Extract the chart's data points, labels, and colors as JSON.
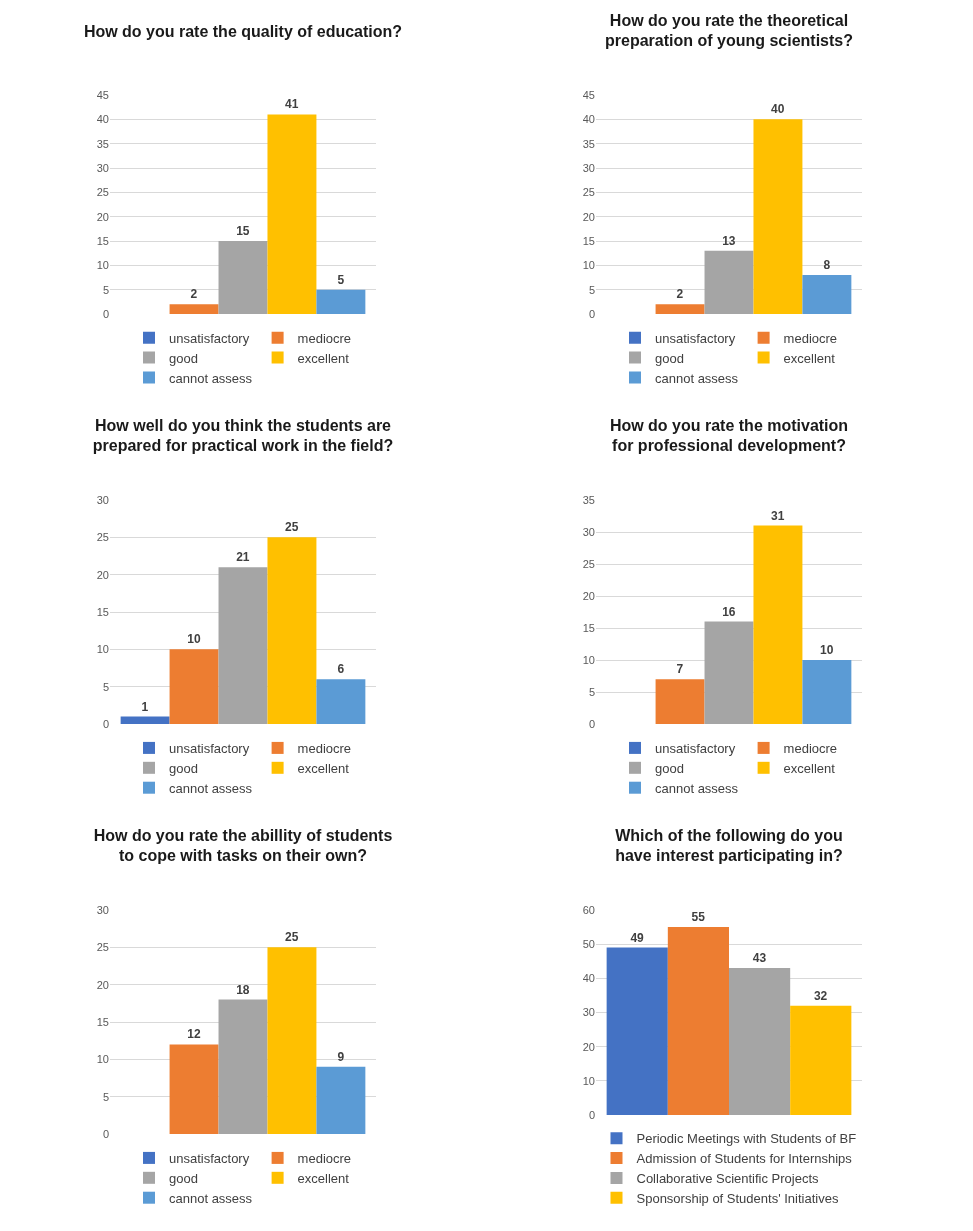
{
  "chart_data": [
    {
      "type": "bar",
      "title": "How do you rate the quality of education?",
      "categories": [
        null
      ],
      "ylim": [
        0,
        45
      ],
      "yticks": [
        0,
        5,
        10,
        15,
        20,
        25,
        30,
        35,
        40,
        45
      ],
      "grid": "y",
      "legend": "bottom",
      "data_labels": true,
      "tick_labels": "y",
      "series": [
        {
          "name": "unsatisfactory",
          "color": "#4472c4",
          "values": [
            null
          ]
        },
        {
          "name": "mediocre",
          "color": "#ed7d31",
          "values": [
            2
          ]
        },
        {
          "name": "good",
          "color": "#a5a5a5",
          "values": [
            15
          ]
        },
        {
          "name": "excellent",
          "color": "#ffc000",
          "values": [
            41
          ]
        },
        {
          "name": "cannot assess",
          "color": "#5b9bd5",
          "values": [
            5
          ]
        }
      ]
    },
    {
      "type": "bar",
      "title": "How do you rate the theoretical preparation of young scientists?",
      "categories": [
        null
      ],
      "ylim": [
        0,
        45
      ],
      "yticks": [
        0,
        5,
        10,
        15,
        20,
        25,
        30,
        35,
        40,
        45
      ],
      "grid": "y",
      "legend": "bottom",
      "data_labels": true,
      "tick_labels": "y",
      "series": [
        {
          "name": "unsatisfactory",
          "color": "#4472c4",
          "values": [
            null
          ]
        },
        {
          "name": "mediocre",
          "color": "#ed7d31",
          "values": [
            2
          ]
        },
        {
          "name": "good",
          "color": "#a5a5a5",
          "values": [
            13
          ]
        },
        {
          "name": "excellent",
          "color": "#ffc000",
          "values": [
            40
          ]
        },
        {
          "name": "cannot assess",
          "color": "#5b9bd5",
          "values": [
            8
          ]
        }
      ]
    },
    {
      "type": "bar",
      "title": "How well do you think the students are prepared for practical work in the field?",
      "categories": [
        null
      ],
      "ylim": [
        0,
        30
      ],
      "yticks": [
        0,
        5,
        10,
        15,
        20,
        25,
        30
      ],
      "grid": "y",
      "legend": "bottom",
      "data_labels": true,
      "tick_labels": "y",
      "series": [
        {
          "name": "unsatisfactory",
          "color": "#4472c4",
          "values": [
            1
          ]
        },
        {
          "name": "mediocre",
          "color": "#ed7d31",
          "values": [
            10
          ]
        },
        {
          "name": "good",
          "color": "#a5a5a5",
          "values": [
            21
          ]
        },
        {
          "name": "excellent",
          "color": "#ffc000",
          "values": [
            25
          ]
        },
        {
          "name": "cannot assess",
          "color": "#5b9bd5",
          "values": [
            6
          ]
        }
      ]
    },
    {
      "type": "bar",
      "title": "How do you rate the motivation for professional development?",
      "categories": [
        null
      ],
      "ylim": [
        0,
        35
      ],
      "yticks": [
        0,
        5,
        10,
        15,
        20,
        25,
        30,
        35
      ],
      "grid": "y",
      "legend": "bottom",
      "data_labels": true,
      "tick_labels": "y",
      "series": [
        {
          "name": "unsatisfactory",
          "color": "#4472c4",
          "values": [
            null
          ]
        },
        {
          "name": "mediocre",
          "color": "#ed7d31",
          "values": [
            7
          ]
        },
        {
          "name": "good",
          "color": "#a5a5a5",
          "values": [
            16
          ]
        },
        {
          "name": "excellent",
          "color": "#ffc000",
          "values": [
            31
          ]
        },
        {
          "name": "cannot assess",
          "color": "#5b9bd5",
          "values": [
            10
          ]
        }
      ]
    },
    {
      "type": "bar",
      "title": "How do you rate the abillity of students to cope with tasks on their own?",
      "categories": [
        null
      ],
      "ylim": [
        0,
        30
      ],
      "yticks": [
        0,
        5,
        10,
        15,
        20,
        25,
        30
      ],
      "grid": "y",
      "legend": "bottom",
      "data_labels": true,
      "tick_labels": "y",
      "series": [
        {
          "name": "unsatisfactory",
          "color": "#4472c4",
          "values": [
            null
          ]
        },
        {
          "name": "mediocre",
          "color": "#ed7d31",
          "values": [
            12
          ]
        },
        {
          "name": "good",
          "color": "#a5a5a5",
          "values": [
            18
          ]
        },
        {
          "name": "excellent",
          "color": "#ffc000",
          "values": [
            25
          ]
        },
        {
          "name": "cannot assess",
          "color": "#5b9bd5",
          "values": [
            9
          ]
        }
      ]
    },
    {
      "type": "bar",
      "title": "Which of the following do you have interest participating in?",
      "categories": [
        null
      ],
      "ylim": [
        0,
        60
      ],
      "yticks": [
        0,
        10,
        20,
        30,
        40,
        50,
        60
      ],
      "grid": "y",
      "legend": "bottom",
      "data_labels": true,
      "tick_labels": "y",
      "series": [
        {
          "name": "Periodic Meetings with Students of BF",
          "color": "#4472c4",
          "values": [
            49
          ]
        },
        {
          "name": "Admission of Students for Internships",
          "color": "#ed7d31",
          "values": [
            55
          ]
        },
        {
          "name": "Collaborative Scientific Projects",
          "color": "#a5a5a5",
          "values": [
            43
          ]
        },
        {
          "name": "Sponsorship of Students' Initiatives",
          "color": "#ffc000",
          "values": [
            32
          ]
        }
      ]
    }
  ]
}
